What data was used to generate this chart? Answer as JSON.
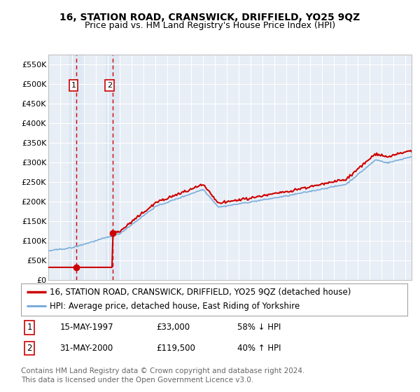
{
  "title": "16, STATION ROAD, CRANSWICK, DRIFFIELD, YO25 9QZ",
  "subtitle": "Price paid vs. HM Land Registry's House Price Index (HPI)",
  "ylim": [
    0,
    575000
  ],
  "yticks": [
    0,
    50000,
    100000,
    150000,
    200000,
    250000,
    300000,
    350000,
    400000,
    450000,
    500000,
    550000
  ],
  "ytick_labels": [
    "£0",
    "£50K",
    "£100K",
    "£150K",
    "£200K",
    "£250K",
    "£300K",
    "£350K",
    "£400K",
    "£450K",
    "£500K",
    "£550K"
  ],
  "xlim_start": 1995.0,
  "xlim_end": 2025.5,
  "transactions": [
    {
      "date_num": 1997.37,
      "price": 33000,
      "label": "1",
      "date_str": "15-MAY-1997",
      "price_str": "£33,000",
      "hpi_str": "58% ↓ HPI"
    },
    {
      "date_num": 2000.41,
      "price": 119500,
      "label": "2",
      "date_str": "31-MAY-2000",
      "price_str": "£119,500",
      "hpi_str": "40% ↑ HPI"
    }
  ],
  "legend_entries": [
    {
      "label": "16, STATION ROAD, CRANSWICK, DRIFFIELD, YO25 9QZ (detached house)",
      "color": "#cc0000",
      "lw": 1.5
    },
    {
      "label": "HPI: Average price, detached house, East Riding of Yorkshire",
      "color": "#7aaddc",
      "lw": 1.2
    }
  ],
  "footer": "Contains HM Land Registry data © Crown copyright and database right 2024.\nThis data is licensed under the Open Government Licence v3.0.",
  "bg_color": "#e8eef5",
  "grid_color": "#ffffff",
  "vline_color": "#cc0000",
  "title_fontsize": 10,
  "subtitle_fontsize": 9,
  "tick_fontsize": 8,
  "legend_fontsize": 8.5,
  "footer_fontsize": 7.5
}
